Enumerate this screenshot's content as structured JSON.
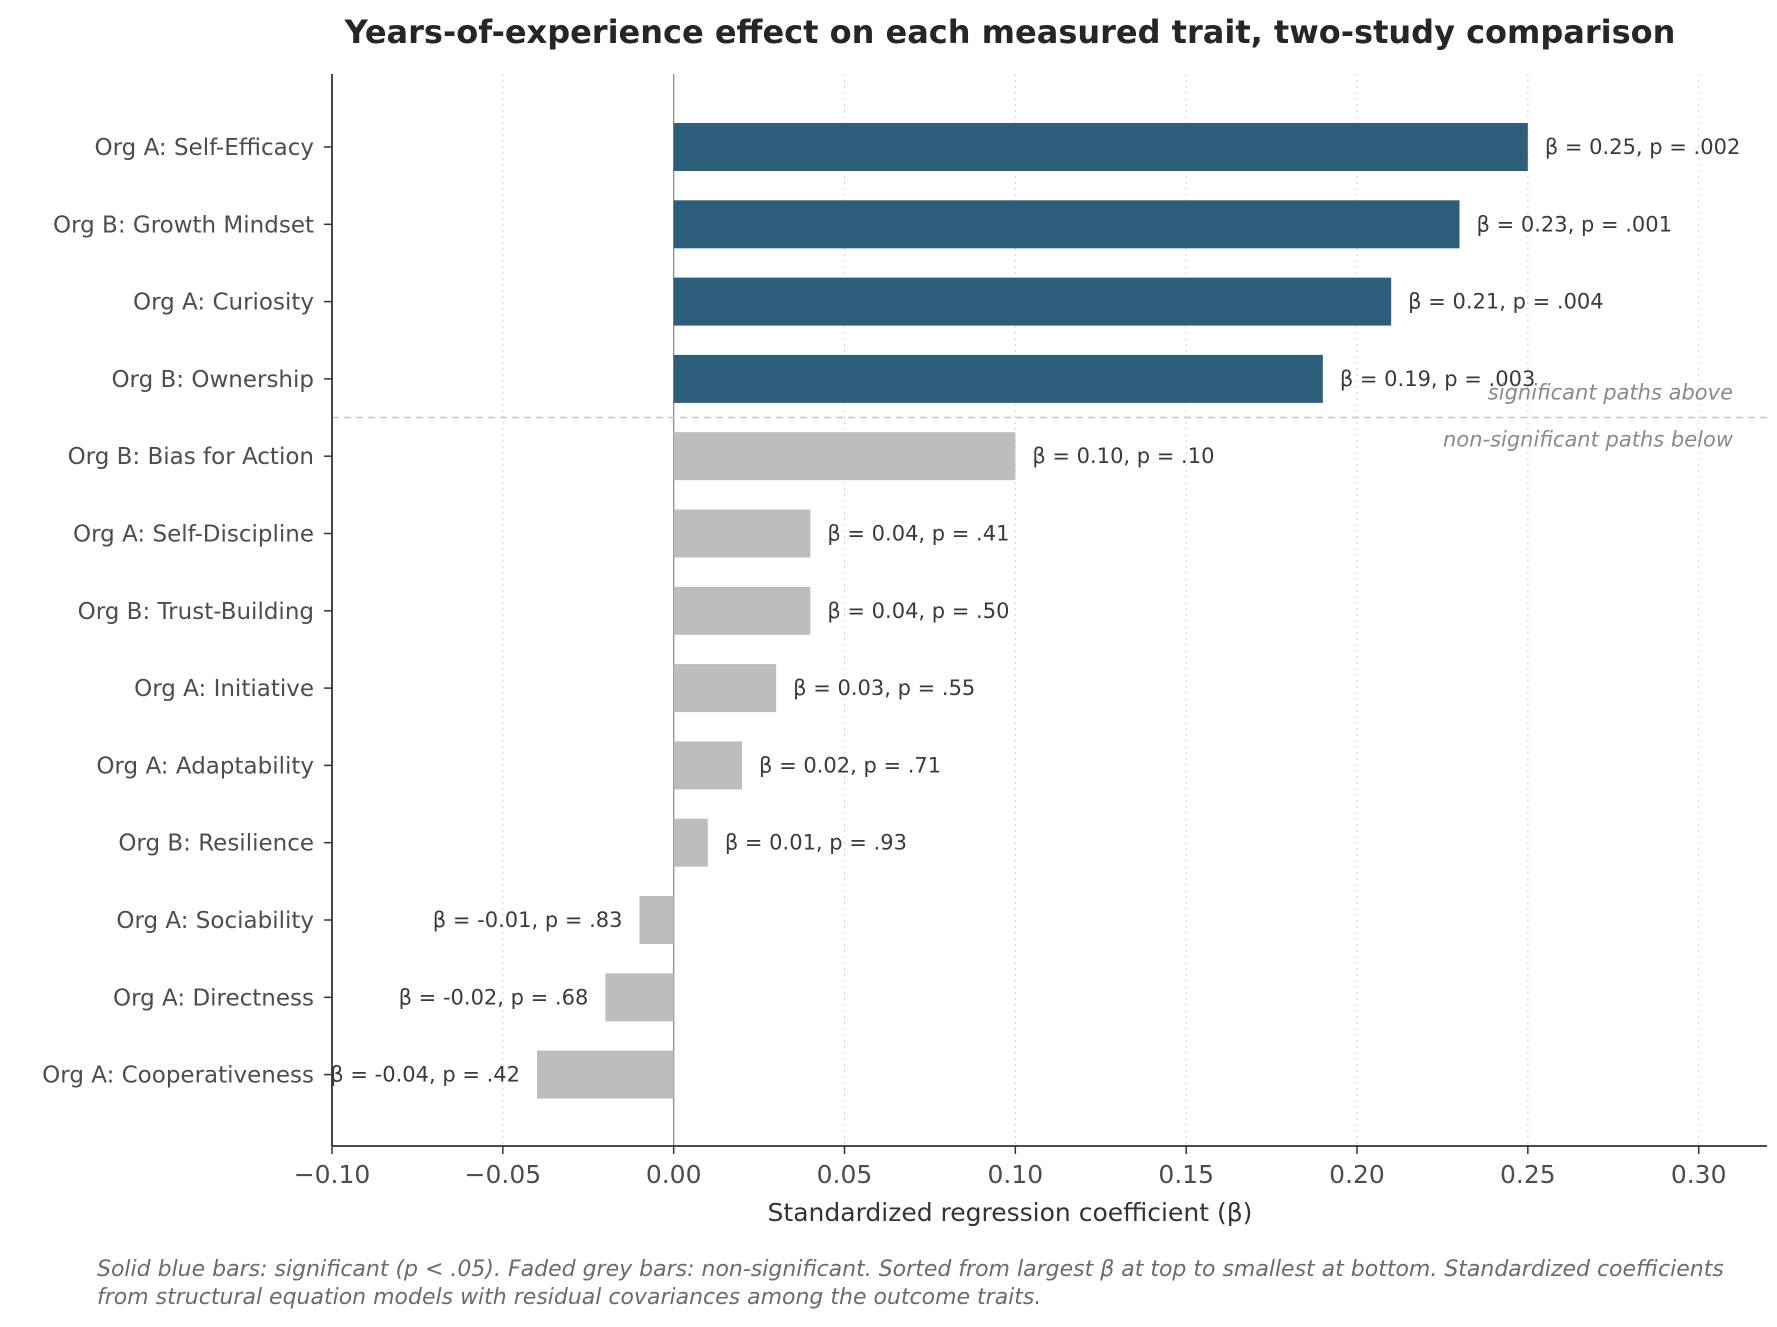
{
  "chart_data": {
    "type": "bar",
    "orientation": "horizontal",
    "title": "Years-of-experience effect on each measured trait, two-study comparison",
    "xlabel": "Standardized regression coefficient (β)",
    "ylabel": "",
    "xlim": [
      -0.1,
      0.32
    ],
    "xticks": [
      -0.1,
      -0.05,
      0.0,
      0.05,
      0.1,
      0.15,
      0.2,
      0.25,
      0.3
    ],
    "xtick_labels": [
      "−0.10",
      "−0.05",
      "0.00",
      "0.05",
      "0.10",
      "0.15",
      "0.20",
      "0.25",
      "0.30"
    ],
    "grid": "x-axis, dotted",
    "categories": [
      "Org A: Self-Efficacy",
      "Org B: Growth Mindset",
      "Org A: Curiosity",
      "Org B: Ownership",
      "Org B: Bias for Action",
      "Org A: Self-Discipline",
      "Org B: Trust-Building",
      "Org A: Initiative",
      "Org A: Adaptability",
      "Org B: Resilience",
      "Org A: Sociability",
      "Org A: Directness",
      "Org A: Cooperativeness"
    ],
    "values": [
      0.25,
      0.23,
      0.21,
      0.19,
      0.1,
      0.04,
      0.04,
      0.03,
      0.02,
      0.01,
      -0.01,
      -0.02,
      -0.04
    ],
    "significant": [
      true,
      true,
      true,
      true,
      false,
      false,
      false,
      false,
      false,
      false,
      false,
      false,
      false
    ],
    "data_labels": [
      "β = 0.25, p = .002",
      "β = 0.23, p = .001",
      "β = 0.21, p = .004",
      "β = 0.19, p = .003",
      "β = 0.10, p = .10",
      "β = 0.04, p = .41",
      "β = 0.04, p = .50",
      "β = 0.03, p = .55",
      "β = 0.02, p = .71",
      "β = 0.01, p = .93",
      "β = -0.01, p = .83",
      "β = -0.02, p = .68",
      "β = -0.04, p = .42"
    ],
    "divider_notes": {
      "above": "significant paths above",
      "below": "non-significant paths below"
    },
    "colors": {
      "significant": "#2e5f7a",
      "non_significant": "#bdbdbd"
    }
  },
  "footnote": "Solid blue bars: significant (p < .05). Faded grey bars: non-significant. Sorted from largest β at top to smallest at bottom. Standardized coefficients from structural equation models with residual covariances among the outcome traits."
}
